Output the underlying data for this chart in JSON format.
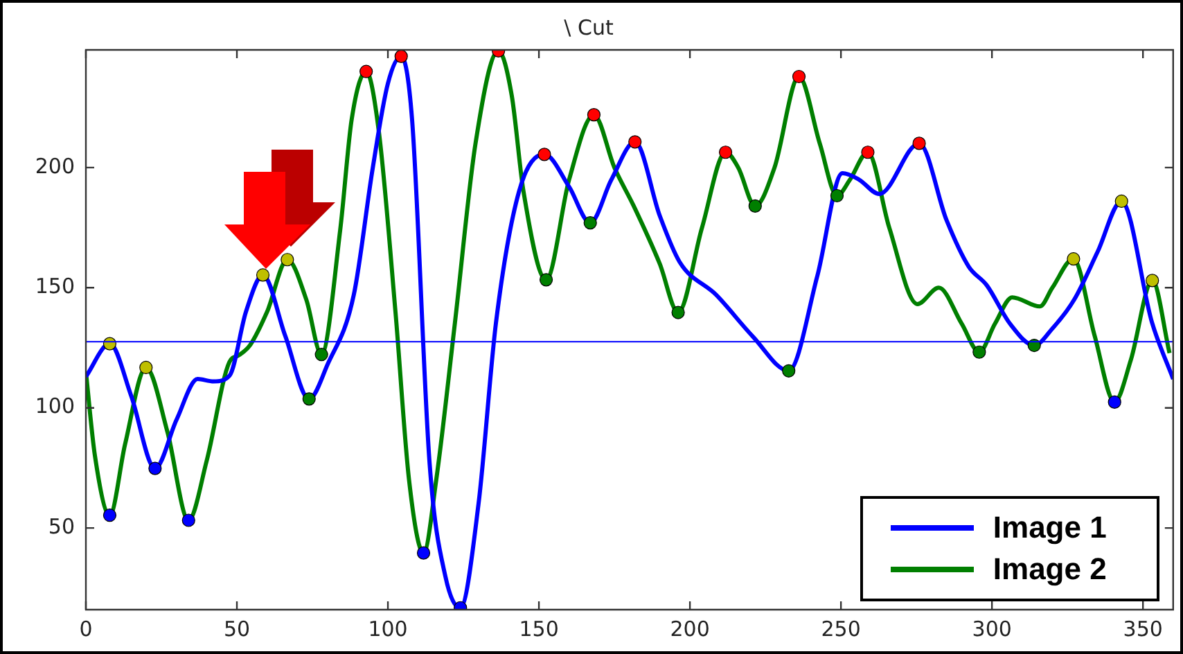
{
  "chart_data": {
    "type": "line",
    "title": "\\ Cut",
    "xlim": [
      0,
      360
    ],
    "xticks": [
      0,
      50,
      100,
      150,
      200,
      250,
      300,
      350
    ],
    "ylim": [
      16,
      249
    ],
    "yticks": [
      50,
      100,
      150,
      200
    ],
    "legend": "bottom right",
    "ref_lines": [
      {
        "axis": "y",
        "value": 127.5,
        "color": "#0000ff"
      }
    ],
    "series": [
      {
        "name": "Image 1",
        "color": "#0000ff",
        "x": [
          0,
          7.9,
          15,
          22.9,
          30,
          37,
          42.3,
          47.6,
          53,
          58.6,
          66,
          73.9,
          80,
          88.7,
          95,
          100,
          104.4,
          108,
          113.8,
          119,
          124,
          130,
          135.8,
          143.4,
          151.8,
          160,
          167,
          174,
          181.8,
          190,
          196.6,
          208.7,
          220.9,
          232.7,
          242.2,
          250.5,
          256,
          262.7,
          275.9,
          285,
          292.3,
          298.3,
          306,
          314,
          320,
          327.3,
          335,
          342.9,
          353,
          360
        ],
        "values": [
          113,
          126.7,
          105,
          74.8,
          95,
          112,
          111,
          113.5,
          140,
          155.3,
          130,
          103.7,
          118,
          147,
          200,
          235,
          246.3,
          220,
          77,
          30,
          16.8,
          60,
          135.6,
          190,
          205.5,
          192,
          177,
          195,
          210.7,
          180,
          160.7,
          147,
          129.6,
          115.4,
          155,
          197.7,
          195,
          189,
          210.1,
          178,
          158.8,
          151,
          135,
          126,
          133,
          145.2,
          165,
          186,
          135.5,
          112
        ]
      },
      {
        "name": "Image 2",
        "color": "#007f00",
        "x": [
          0,
          3,
          7.9,
          13,
          19.9,
          27,
          34,
          40,
          47.5,
          50.5,
          54.3,
          60,
          66.7,
          73,
          78,
          84.2,
          88,
          92.8,
          97,
          102.5,
          107,
          111.8,
          116,
          122.2,
          129,
          136.6,
          141,
          144.9,
          152.4,
          160,
          168.2,
          175,
          181.4,
          190,
          196.1,
          204,
          211.8,
          216,
          221.6,
          228,
          236.1,
          243,
          248.7,
          253,
          258.9,
          266,
          275.3,
          282.4,
          290,
          295.8,
          301,
          306.7,
          315.9,
          320,
          327,
          334,
          340.6,
          346,
          353.1,
          358.8
        ],
        "values": [
          115,
          80,
          55.3,
          85,
          116.8,
          90,
          53.2,
          78,
          119,
          121.8,
          126,
          140,
          161.7,
          145,
          122.2,
          174,
          220,
          240,
          215,
          140,
          70,
          39.6,
          70,
          135.5,
          210,
          248.6,
          230,
          190,
          153.3,
          195,
          222,
          200,
          184,
          160,
          139.7,
          175,
          206.4,
          200,
          184,
          200,
          237.9,
          210,
          188.3,
          195,
          206.4,
          175,
          143.2,
          150,
          135,
          123.2,
          135,
          146,
          142.2,
          150,
          162,
          130,
          102.4,
          120,
          153,
          122.8
        ]
      },
      {
        "type": "scatter",
        "marker": "circle",
        "x": [
          7.9,
          19.9,
          58.6,
          66.7,
          327,
          342.9,
          353.1,
          7.9,
          22.9,
          34,
          111.8,
          124,
          340.6,
          73.9,
          78,
          152.4,
          167,
          196.1,
          221.6,
          232.7,
          248.7,
          295.8,
          314,
          92.8,
          104.4,
          136.6,
          151.8,
          168.2,
          181.8,
          211.8,
          236.1,
          258.9,
          275.9
        ],
        "values": [
          126.7,
          116.8,
          155.3,
          161.7,
          162,
          186,
          153,
          55.3,
          74.8,
          53.2,
          39.6,
          16.8,
          102.4,
          103.7,
          122.2,
          153.3,
          177,
          139.7,
          184,
          115.4,
          188.3,
          123.2,
          126,
          240,
          246.3,
          248.6,
          205.5,
          222,
          210.7,
          206.4,
          237.9,
          206.4,
          210.1
        ],
        "colors": [
          "#bfbf00",
          "#bfbf00",
          "#bfbf00",
          "#bfbf00",
          "#bfbf00",
          "#bfbf00",
          "#bfbf00",
          "#0000ff",
          "#0000ff",
          "#0000ff",
          "#0000ff",
          "#0000ff",
          "#0000ff",
          "#007f00",
          "#007f00",
          "#007f00",
          "#007f00",
          "#007f00",
          "#007f00",
          "#007f00",
          "#007f00",
          "#007f00",
          "#007f00",
          "#ff0000",
          "#ff0000",
          "#ff0000",
          "#ff0000",
          "#ff0000",
          "#ff0000",
          "#ff0000",
          "#ff0000",
          "#ff0000",
          "#ff0000"
        ]
      }
    ]
  }
}
